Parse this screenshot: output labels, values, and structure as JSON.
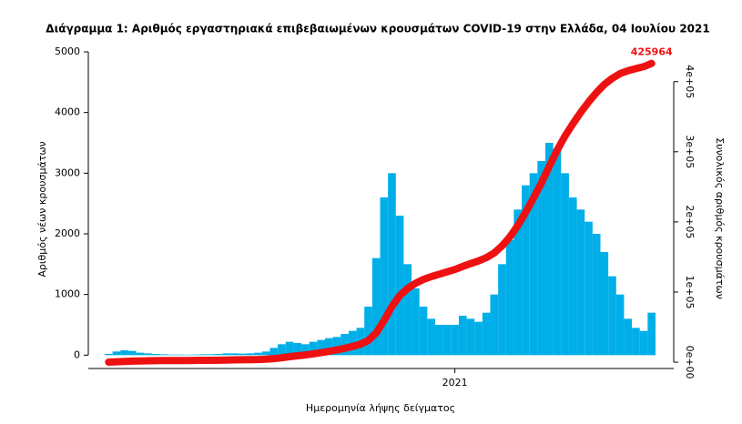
{
  "chart_data": {
    "type": "combo",
    "title": "Διάγραμμα 1: Αριθμός εργαστηριακά επιβεβαιωμένων κρουσμάτων COVID-19 στην Ελλάδα, 04 Ιουλίου 2021",
    "x_label": "Ημερομηνία λήψης δείγματος",
    "y_label": "Αριθμός νέων κρουσμάτων",
    "y2_label": "Συνολικός αριθμός κρουσμάτων",
    "categories": [
      null,
      null,
      null,
      null,
      null,
      null,
      null,
      null,
      null,
      null,
      null,
      null,
      null,
      null,
      null,
      null,
      null,
      null,
      null,
      null,
      null,
      null,
      null,
      null,
      null,
      null,
      null,
      null,
      null,
      null,
      null,
      null,
      null,
      null,
      null,
      null,
      null,
      null,
      null,
      null,
      null,
      null,
      null,
      null,
      "2021",
      null,
      null,
      null,
      null,
      null,
      null,
      null,
      null,
      null,
      null,
      null,
      null,
      null,
      null,
      null,
      null,
      null,
      null,
      null,
      null,
      null,
      null,
      null,
      null,
      null
    ],
    "ylim": [
      -220,
      5180
    ],
    "yticks": [
      0,
      1000,
      2000,
      3000,
      4000,
      5000
    ],
    "y2lim": [
      -9000,
      458000
    ],
    "y2ticks": [
      {
        "value": 0,
        "label": "0e+00"
      },
      {
        "value": 100000,
        "label": "1e+05"
      },
      {
        "value": 200000,
        "label": "2e+05"
      },
      {
        "value": 300000,
        "label": "3e+05"
      },
      {
        "value": 400000,
        "label": "4e+05"
      }
    ],
    "series": [
      {
        "type": "bar",
        "color": "#00aee8",
        "values": [
          20,
          60,
          80,
          70,
          40,
          30,
          20,
          15,
          10,
          10,
          8,
          10,
          15,
          15,
          20,
          30,
          30,
          25,
          30,
          40,
          60,
          120,
          180,
          220,
          200,
          180,
          220,
          250,
          280,
          300,
          350,
          400,
          450,
          800,
          1600,
          2600,
          3000,
          2300,
          1500,
          1100,
          800,
          600,
          500,
          500,
          500,
          650,
          600,
          550,
          700,
          1000,
          1500,
          1900,
          2400,
          2800,
          3000,
          3200,
          3500,
          3400,
          3000,
          2600,
          2400,
          2200,
          2000,
          1700,
          1300,
          1000,
          600,
          450,
          400,
          700
        ]
      },
      {
        "type": "line",
        "axis": "y2",
        "color": "#ee1111",
        "values": [
          135,
          540,
          1080,
          1550,
          1820,
          2020,
          2160,
          2260,
          2330,
          2400,
          2450,
          2520,
          2620,
          2720,
          2850,
          3060,
          3260,
          3430,
          3630,
          3900,
          4300,
          5110,
          6330,
          7810,
          9160,
          10380,
          11860,
          13550,
          15440,
          17460,
          19820,
          22520,
          25560,
          30950,
          41750,
          59290,
          79530,
          95050,
          105170,
          112590,
          117990,
          122030,
          125400,
          128780,
          132150,
          136540,
          140590,
          144300,
          149020,
          155770,
          165890,
          178710,
          194900,
          213790,
          234030,
          255620,
          279230,
          302170,
          322410,
          339950,
          356140,
          370980,
          384480,
          395950,
          404720,
          411470,
          415520,
          418550,
          421250,
          425964
        ]
      }
    ]
  }
}
